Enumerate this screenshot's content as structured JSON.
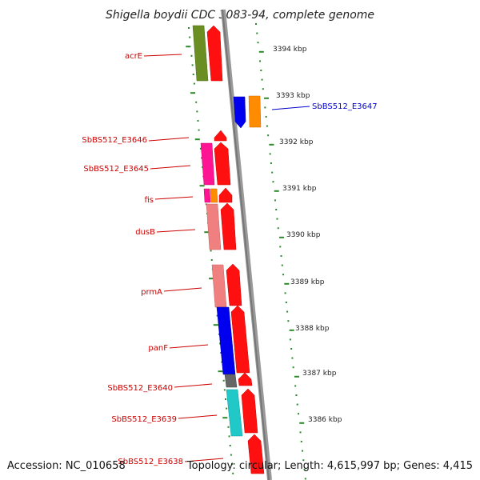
{
  "title": "Shigella boydii CDC 3083-94, complete genome",
  "footer": {
    "accession": "Accession: NC_010658",
    "topology": "Topology: circular; Length: 4,615,997 bp; Genes: 4,415"
  },
  "kbp_labels": [
    "3394 kbp",
    "3393 kbp",
    "3392 kbp",
    "3391 kbp",
    "3390 kbp",
    "3389 kbp",
    "3388 kbp",
    "3387 kbp",
    "3386 kbp"
  ],
  "gene_labels": [
    {
      "text": "acrE",
      "color": "#cc0000"
    },
    {
      "text": "SbBS512_E3647",
      "color": "#0000cc"
    },
    {
      "text": "SbBS512_E3646",
      "color": "#cc0000"
    },
    {
      "text": "SbBS512_E3645",
      "color": "#cc0000"
    },
    {
      "text": "fis",
      "color": "#cc0000"
    },
    {
      "text": "dusB",
      "color": "#cc0000"
    },
    {
      "text": "prmA",
      "color": "#cc0000"
    },
    {
      "text": "panF",
      "color": "#cc0000"
    },
    {
      "text": "SbBS512_E3640",
      "color": "#cc0000"
    },
    {
      "text": "SbBS512_E3639",
      "color": "#cc0000"
    },
    {
      "text": "SbBS512_E3638",
      "color": "#cc0000"
    }
  ],
  "colors": {
    "backbone": "#8a8a8a",
    "tick": "#2a8a2a",
    "forward_arrow": "#ff0000",
    "reverse_arrow": "#0000ee",
    "label_red": "#cc0000",
    "label_blue": "#0000cc"
  }
}
